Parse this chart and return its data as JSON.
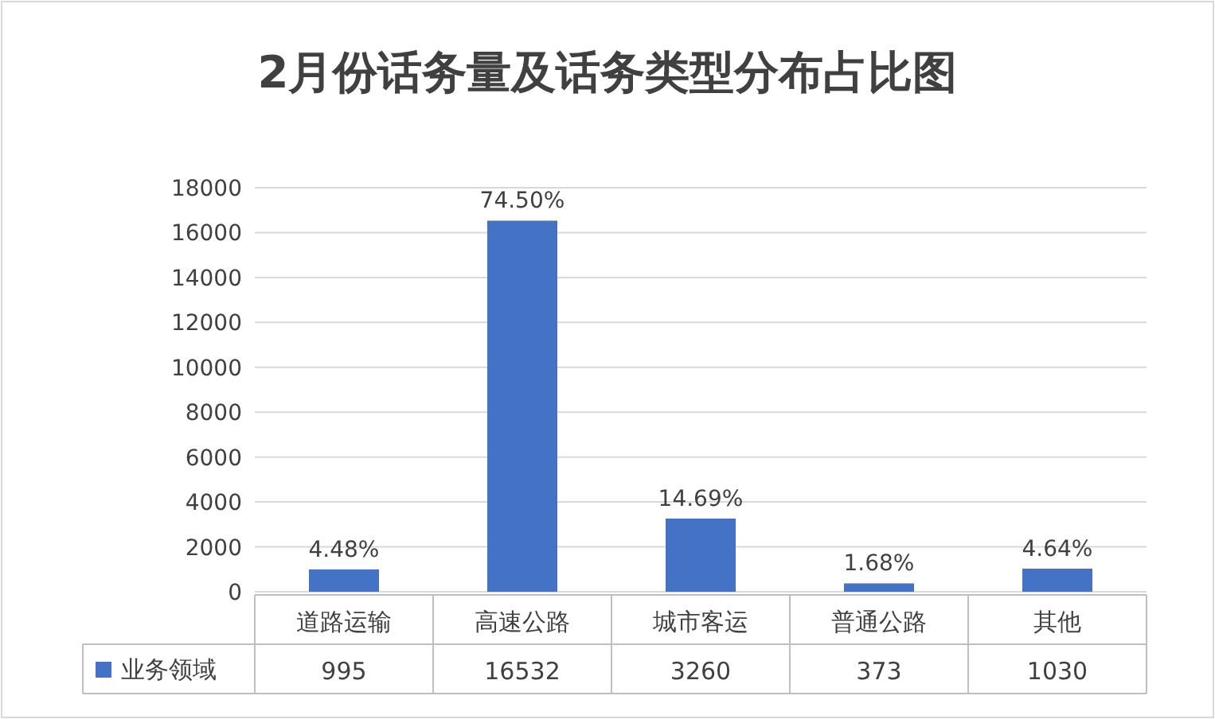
{
  "chart_data": {
    "type": "bar",
    "title": "2月份话务量及话务类型分布占比图",
    "categories": [
      "道路运输",
      "高速公路",
      "城市客运",
      "普通公路",
      "其他"
    ],
    "series": [
      {
        "name": "业务领域",
        "color": "#4472c4",
        "values": [
          995,
          16532,
          3260,
          373,
          1030
        ],
        "value_labels": [
          "995",
          "16532",
          "3260",
          "373",
          "1030"
        ]
      }
    ],
    "annotations": [
      {
        "text": "4.48%",
        "x": "道路运输",
        "y": 995
      },
      {
        "text": "74.50%",
        "x": "高速公路",
        "y": 16532
      },
      {
        "text": "14.69%",
        "x": "城市客运",
        "y": 3260
      },
      {
        "text": "1.68%",
        "x": "普通公路",
        "y": 373
      },
      {
        "text": "4.64%",
        "x": "其他",
        "y": 1030
      }
    ],
    "ylim": [
      0,
      18000
    ],
    "yticks": [
      0,
      2000,
      4000,
      6000,
      8000,
      10000,
      12000,
      14000,
      16000,
      18000
    ],
    "grid": "y",
    "legend": "bottom"
  }
}
